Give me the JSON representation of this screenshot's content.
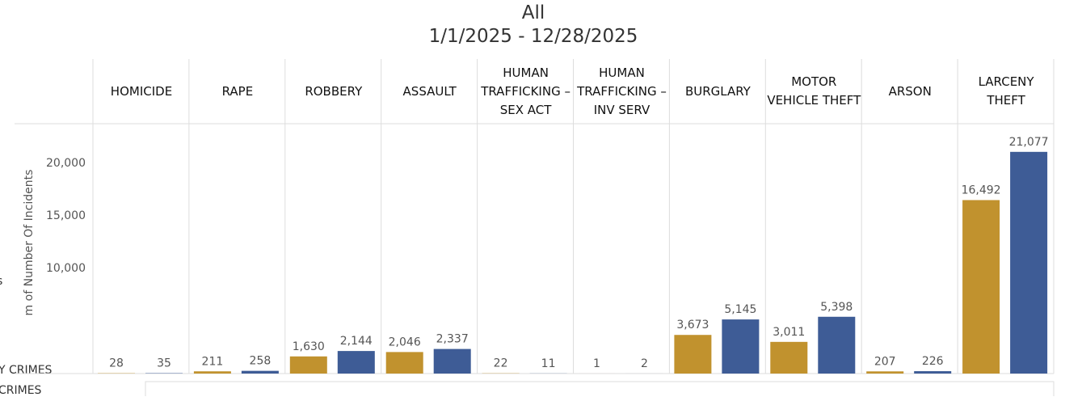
{
  "chart_data": {
    "type": "bar",
    "title": "All",
    "subtitle": "1/1/2025 - 12/28/2025",
    "y_label": "m of Number Of Incidents",
    "categories": [
      "HOMICIDE",
      "RAPE",
      "ROBBERY",
      "ASSAULT",
      "HUMAN TRAFFICKING – SEX ACT",
      "HUMAN TRAFFICKING – INV SERV",
      "BURGLARY",
      "MOTOR VEHICLE THEFT",
      "ARSON",
      "LARCENY THEFT"
    ],
    "series": [
      {
        "color": "#c1922e",
        "values": [
          28,
          211,
          1630,
          2046,
          22,
          1,
          3673,
          3011,
          207,
          16492
        ],
        "value_labels": [
          "28",
          "211",
          "1,630",
          "2,046",
          "22",
          "1",
          "3,673",
          "3,011",
          "207",
          "16,492"
        ]
      },
      {
        "color": "#3e5c96",
        "values": [
          35,
          258,
          2144,
          2337,
          11,
          2,
          5145,
          5398,
          226,
          21077
        ],
        "value_labels": [
          "35",
          "258",
          "2,144",
          "2,337",
          "11",
          "2",
          "5,145",
          "5,398",
          "226",
          "21,077"
        ]
      }
    ],
    "ylim": [
      0,
      23600
    ],
    "yticks": [
      {
        "value": 10000,
        "label": "10,000"
      },
      {
        "value": 15000,
        "label": "15,000"
      },
      {
        "value": 20000,
        "label": "20,000"
      }
    ]
  },
  "left_labels": [
    "s",
    "Y CRIMES",
    "CRIMES"
  ]
}
